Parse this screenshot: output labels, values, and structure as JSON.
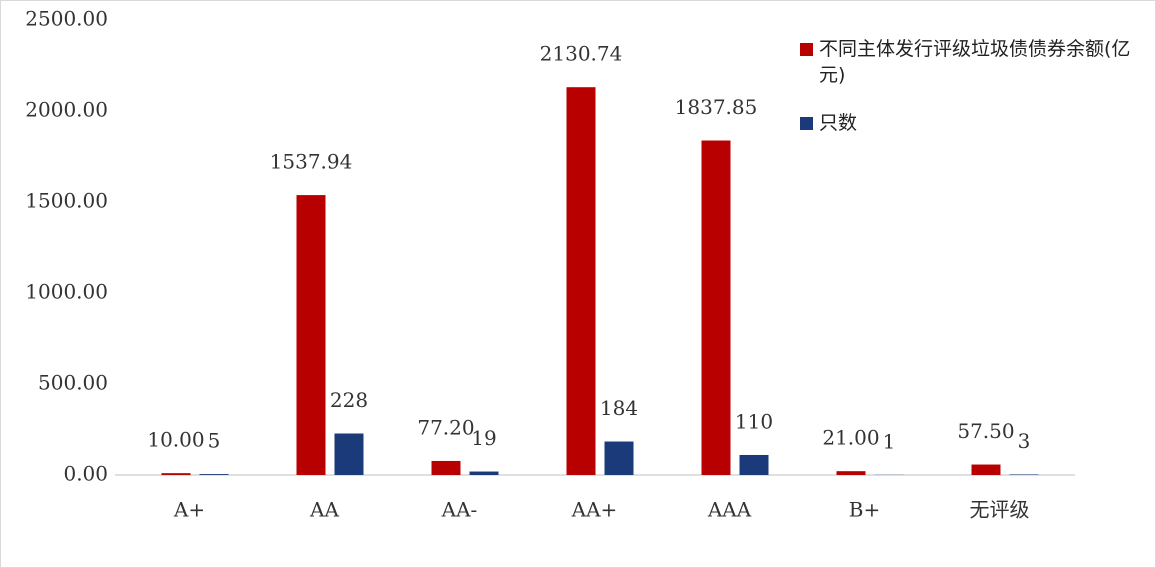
{
  "chart_data": {
    "type": "bar",
    "categories": [
      "A+",
      "AA",
      "AA-",
      "AA+",
      "AAA",
      "B+",
      "无评级"
    ],
    "series": [
      {
        "name": "不同主体发行评级垃圾债债券余额(亿元)",
        "color": "#b80000",
        "values": [
          10.0,
          1537.94,
          77.2,
          2130.74,
          1837.85,
          21.0,
          57.5
        ],
        "value_labels": [
          "10.00",
          "1537.94",
          "77.20",
          "2130.74",
          "1837.85",
          "21.00",
          "57.50"
        ]
      },
      {
        "name": "只数",
        "color": "#1a3a7a",
        "values": [
          5,
          228,
          19,
          184,
          110,
          1,
          3
        ]
      }
    ],
    "ylim": [
      0,
      2500
    ],
    "yticks": [
      {
        "value": 0,
        "label": "0.00"
      },
      {
        "value": 500,
        "label": "500.00"
      },
      {
        "value": 1000,
        "label": "1000.00"
      },
      {
        "value": 1500,
        "label": "1500.00"
      },
      {
        "value": 2000,
        "label": "2000.00"
      },
      {
        "value": 2500,
        "label": "2500.00"
      }
    ],
    "legend": "top-right"
  }
}
